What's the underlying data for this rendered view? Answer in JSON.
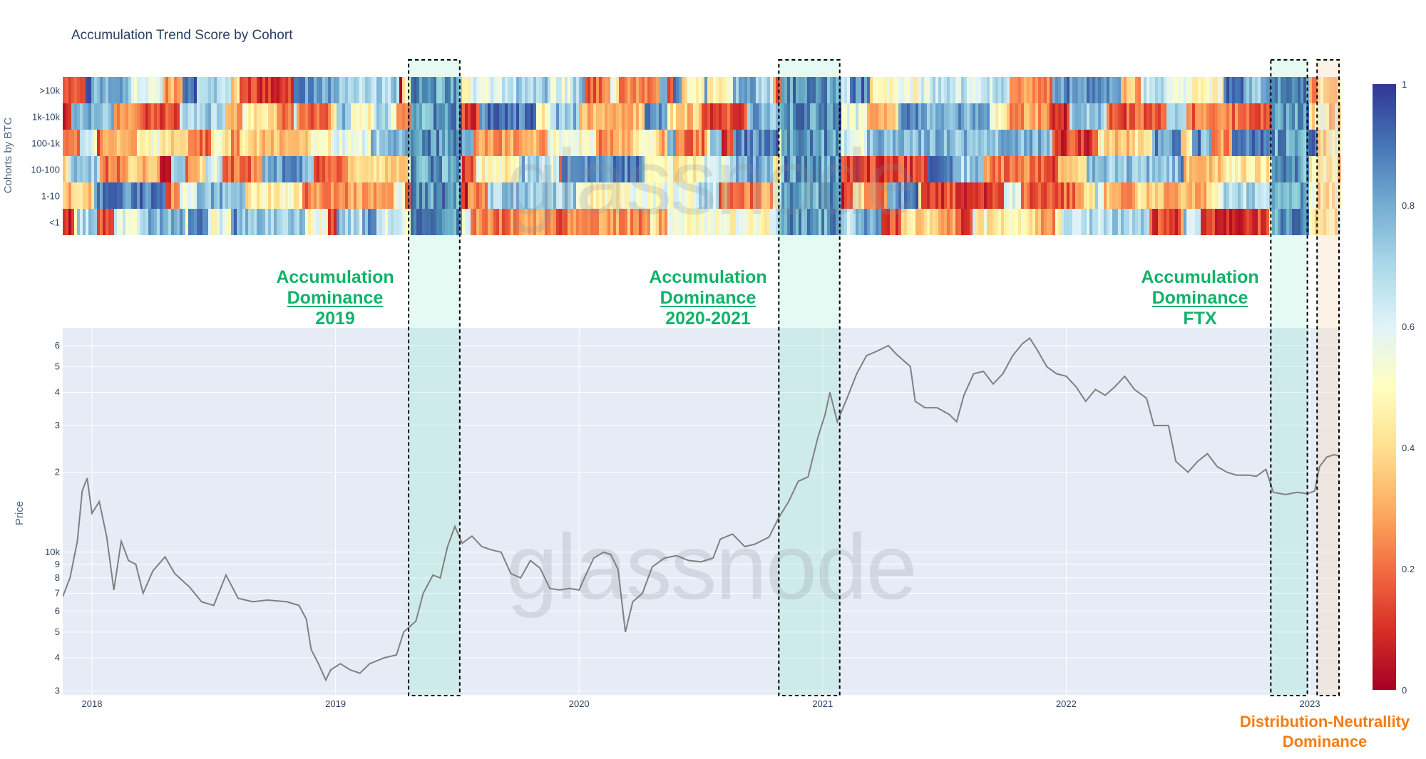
{
  "chart_data": [
    {
      "type": "heatmap",
      "title": "Accumulation Trend Score by Cohort",
      "ylabel": "Cohorts by BTC",
      "cohorts": [
        ">10k",
        "1k-10k",
        "100-1k",
        "10-100",
        "1-10",
        "<1"
      ],
      "colorscale": "RdYlBu",
      "colorbar": {
        "range": [
          0,
          1
        ],
        "ticks": [
          "0",
          "0.2",
          "0.4",
          "0.6",
          "0.8",
          "1"
        ]
      },
      "x_range": [
        2017.88,
        2023.12
      ]
    },
    {
      "type": "line",
      "series_name": "Price",
      "ylabel": "Price",
      "yscale": "log",
      "y_ticks": [
        "3",
        "4",
        "5",
        "6",
        "7",
        "8",
        "9",
        "10k",
        "2",
        "3",
        "4",
        "5",
        "6"
      ],
      "y_tick_values": [
        3000,
        4000,
        5000,
        6000,
        7000,
        8000,
        9000,
        10000,
        20000,
        30000,
        40000,
        50000,
        60000
      ],
      "x_ticks": [
        "2018",
        "2019",
        "2020",
        "2021",
        "2022",
        "2023"
      ],
      "x_tick_values": [
        2018.0,
        2019.0,
        2020.0,
        2021.0,
        2022.0,
        2023.0
      ],
      "x_range": [
        2017.88,
        2023.12
      ],
      "y_range": [
        2900,
        70000
      ],
      "line_color": "#808080",
      "points": [
        [
          2017.88,
          6800
        ],
        [
          2017.91,
          8000
        ],
        [
          2017.94,
          11000
        ],
        [
          2017.96,
          17000
        ],
        [
          2017.98,
          19000
        ],
        [
          2018.0,
          14000
        ],
        [
          2018.03,
          15500
        ],
        [
          2018.06,
          11500
        ],
        [
          2018.09,
          7200
        ],
        [
          2018.12,
          11000
        ],
        [
          2018.15,
          9300
        ],
        [
          2018.18,
          9000
        ],
        [
          2018.21,
          7000
        ],
        [
          2018.25,
          8500
        ],
        [
          2018.3,
          9600
        ],
        [
          2018.34,
          8300
        ],
        [
          2018.4,
          7400
        ],
        [
          2018.45,
          6500
        ],
        [
          2018.5,
          6300
        ],
        [
          2018.55,
          8200
        ],
        [
          2018.6,
          6700
        ],
        [
          2018.66,
          6500
        ],
        [
          2018.72,
          6600
        ],
        [
          2018.8,
          6500
        ],
        [
          2018.85,
          6300
        ],
        [
          2018.88,
          5600
        ],
        [
          2018.9,
          4300
        ],
        [
          2018.93,
          3800
        ],
        [
          2018.96,
          3300
        ],
        [
          2018.98,
          3600
        ],
        [
          2019.02,
          3800
        ],
        [
          2019.06,
          3600
        ],
        [
          2019.1,
          3500
        ],
        [
          2019.14,
          3800
        ],
        [
          2019.2,
          4000
        ],
        [
          2019.25,
          4100
        ],
        [
          2019.28,
          5000
        ],
        [
          2019.33,
          5500
        ],
        [
          2019.36,
          7000
        ],
        [
          2019.4,
          8200
        ],
        [
          2019.43,
          8000
        ],
        [
          2019.46,
          10500
        ],
        [
          2019.49,
          12500
        ],
        [
          2019.52,
          10800
        ],
        [
          2019.56,
          11500
        ],
        [
          2019.6,
          10500
        ],
        [
          2019.64,
          10200
        ],
        [
          2019.68,
          10000
        ],
        [
          2019.72,
          8300
        ],
        [
          2019.76,
          8000
        ],
        [
          2019.8,
          9300
        ],
        [
          2019.84,
          8700
        ],
        [
          2019.88,
          7300
        ],
        [
          2019.92,
          7200
        ],
        [
          2019.96,
          7300
        ],
        [
          2020.0,
          7200
        ],
        [
          2020.03,
          8300
        ],
        [
          2020.06,
          9500
        ],
        [
          2020.1,
          10000
        ],
        [
          2020.13,
          9800
        ],
        [
          2020.16,
          8600
        ],
        [
          2020.19,
          5000
        ],
        [
          2020.22,
          6500
        ],
        [
          2020.26,
          7000
        ],
        [
          2020.3,
          8800
        ],
        [
          2020.35,
          9500
        ],
        [
          2020.4,
          9700
        ],
        [
          2020.45,
          9300
        ],
        [
          2020.5,
          9200
        ],
        [
          2020.55,
          9500
        ],
        [
          2020.58,
          11200
        ],
        [
          2020.63,
          11700
        ],
        [
          2020.68,
          10500
        ],
        [
          2020.72,
          10700
        ],
        [
          2020.78,
          11400
        ],
        [
          2020.82,
          13500
        ],
        [
          2020.86,
          15500
        ],
        [
          2020.9,
          18500
        ],
        [
          2020.94,
          19200
        ],
        [
          2020.98,
          27000
        ],
        [
          2021.01,
          33000
        ],
        [
          2021.03,
          40000
        ],
        [
          2021.06,
          31000
        ],
        [
          2021.1,
          38000
        ],
        [
          2021.14,
          47000
        ],
        [
          2021.18,
          55000
        ],
        [
          2021.22,
          57000
        ],
        [
          2021.27,
          60000
        ],
        [
          2021.3,
          56000
        ],
        [
          2021.36,
          50000
        ],
        [
          2021.38,
          37000
        ],
        [
          2021.42,
          35000
        ],
        [
          2021.47,
          35000
        ],
        [
          2021.52,
          33000
        ],
        [
          2021.55,
          31000
        ],
        [
          2021.58,
          39000
        ],
        [
          2021.62,
          47000
        ],
        [
          2021.66,
          48000
        ],
        [
          2021.7,
          43000
        ],
        [
          2021.74,
          47000
        ],
        [
          2021.78,
          55000
        ],
        [
          2021.82,
          61000
        ],
        [
          2021.85,
          64000
        ],
        [
          2021.88,
          58000
        ],
        [
          2021.92,
          50000
        ],
        [
          2021.96,
          47000
        ],
        [
          2022.0,
          46000
        ],
        [
          2022.04,
          42000
        ],
        [
          2022.08,
          37000
        ],
        [
          2022.12,
          41000
        ],
        [
          2022.16,
          39000
        ],
        [
          2022.2,
          42000
        ],
        [
          2022.24,
          46000
        ],
        [
          2022.28,
          41000
        ],
        [
          2022.33,
          38000
        ],
        [
          2022.36,
          30000
        ],
        [
          2022.42,
          30000
        ],
        [
          2022.45,
          22000
        ],
        [
          2022.5,
          20000
        ],
        [
          2022.54,
          22000
        ],
        [
          2022.58,
          23500
        ],
        [
          2022.62,
          21000
        ],
        [
          2022.66,
          20000
        ],
        [
          2022.7,
          19500
        ],
        [
          2022.75,
          19500
        ],
        [
          2022.78,
          19300
        ],
        [
          2022.82,
          20500
        ],
        [
          2022.85,
          16800
        ],
        [
          2022.9,
          16500
        ],
        [
          2022.95,
          16800
        ],
        [
          2022.99,
          16600
        ],
        [
          2023.02,
          17000
        ],
        [
          2023.04,
          21000
        ],
        [
          2023.07,
          22800
        ],
        [
          2023.1,
          23300
        ],
        [
          2023.12,
          23000
        ]
      ]
    }
  ],
  "annotations": {
    "zone_2019": {
      "line1": "Accumulation",
      "line2": "Dominance",
      "line3": "2019",
      "x_start": 2019.3,
      "x_end": 2019.51
    },
    "zone_2020": {
      "line1": "Accumulation",
      "line2": "Dominance",
      "line3": "2020-2021",
      "x_start": 2020.82,
      "x_end": 2021.07
    },
    "zone_ftx": {
      "line1": "Accumulation",
      "line2": "Dominance",
      "line3": "FTX",
      "x_start": 2022.84,
      "x_end": 2022.99
    },
    "zone_distribution": {
      "line1": "Distribution-Neutrallity",
      "line2": "Dominance",
      "x_start": 2023.03,
      "x_end": 2023.12
    }
  },
  "watermark": "glassnode",
  "colors": {
    "zone_green_fill": "#5fe0b0",
    "zone_orange_fill": "#f9d9b8",
    "annotation_green": "#12b26a",
    "annotation_orange": "#f57c12",
    "plot_bg": "#e5ecf6"
  }
}
